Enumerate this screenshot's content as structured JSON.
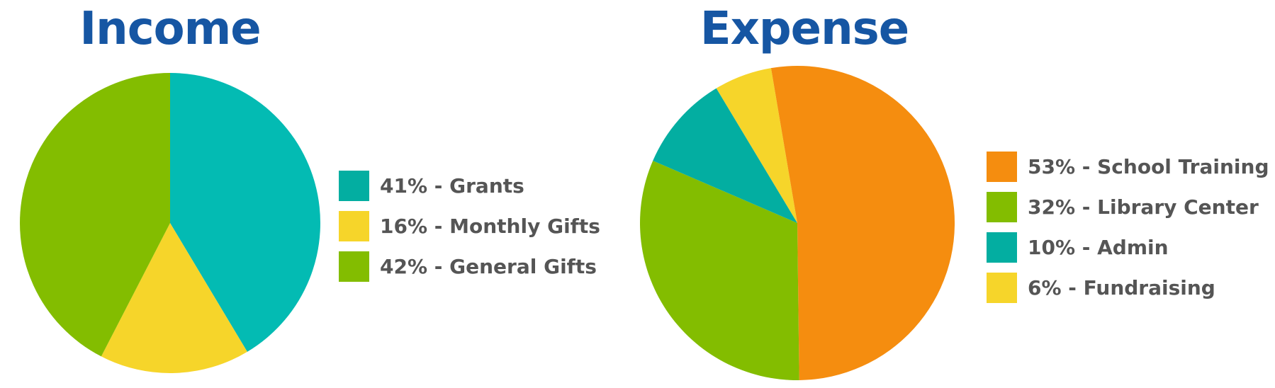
{
  "colors": {
    "title": "#1656a3",
    "label": "#555555",
    "teal_grants": "#03bbb3",
    "teal_admin": "#03aea1",
    "yellow": "#f6d52a",
    "green": "#83bd00",
    "orange": "#f58d0f"
  },
  "chart_data": [
    {
      "type": "pie",
      "title": "Income",
      "legend_position": "right",
      "slices": [
        {
          "label": "41% - Grants",
          "value": 41,
          "color": "#03bbb3",
          "legend_color": "#03aea1"
        },
        {
          "label": "16% - Monthly Gifts",
          "value": 16,
          "color": "#f6d52a",
          "legend_color": "#f6d52a"
        },
        {
          "label": "42% - General Gifts",
          "value": 42,
          "color": "#83bd00",
          "legend_color": "#83bd00"
        }
      ]
    },
    {
      "type": "pie",
      "title": "Expense",
      "legend_position": "right",
      "slices": [
        {
          "label": "53% - School Training",
          "value": 53,
          "color": "#f58d0f",
          "legend_color": "#f58d0f"
        },
        {
          "label": "32% - Library Center",
          "value": 32,
          "color": "#83bd00",
          "legend_color": "#83bd00"
        },
        {
          "label": "10% - Admin",
          "value": 10,
          "color": "#03aea1",
          "legend_color": "#03aea1"
        },
        {
          "label": "6% - Fundraising",
          "value": 6,
          "color": "#f6d52a",
          "legend_color": "#f6d52a"
        }
      ]
    }
  ]
}
